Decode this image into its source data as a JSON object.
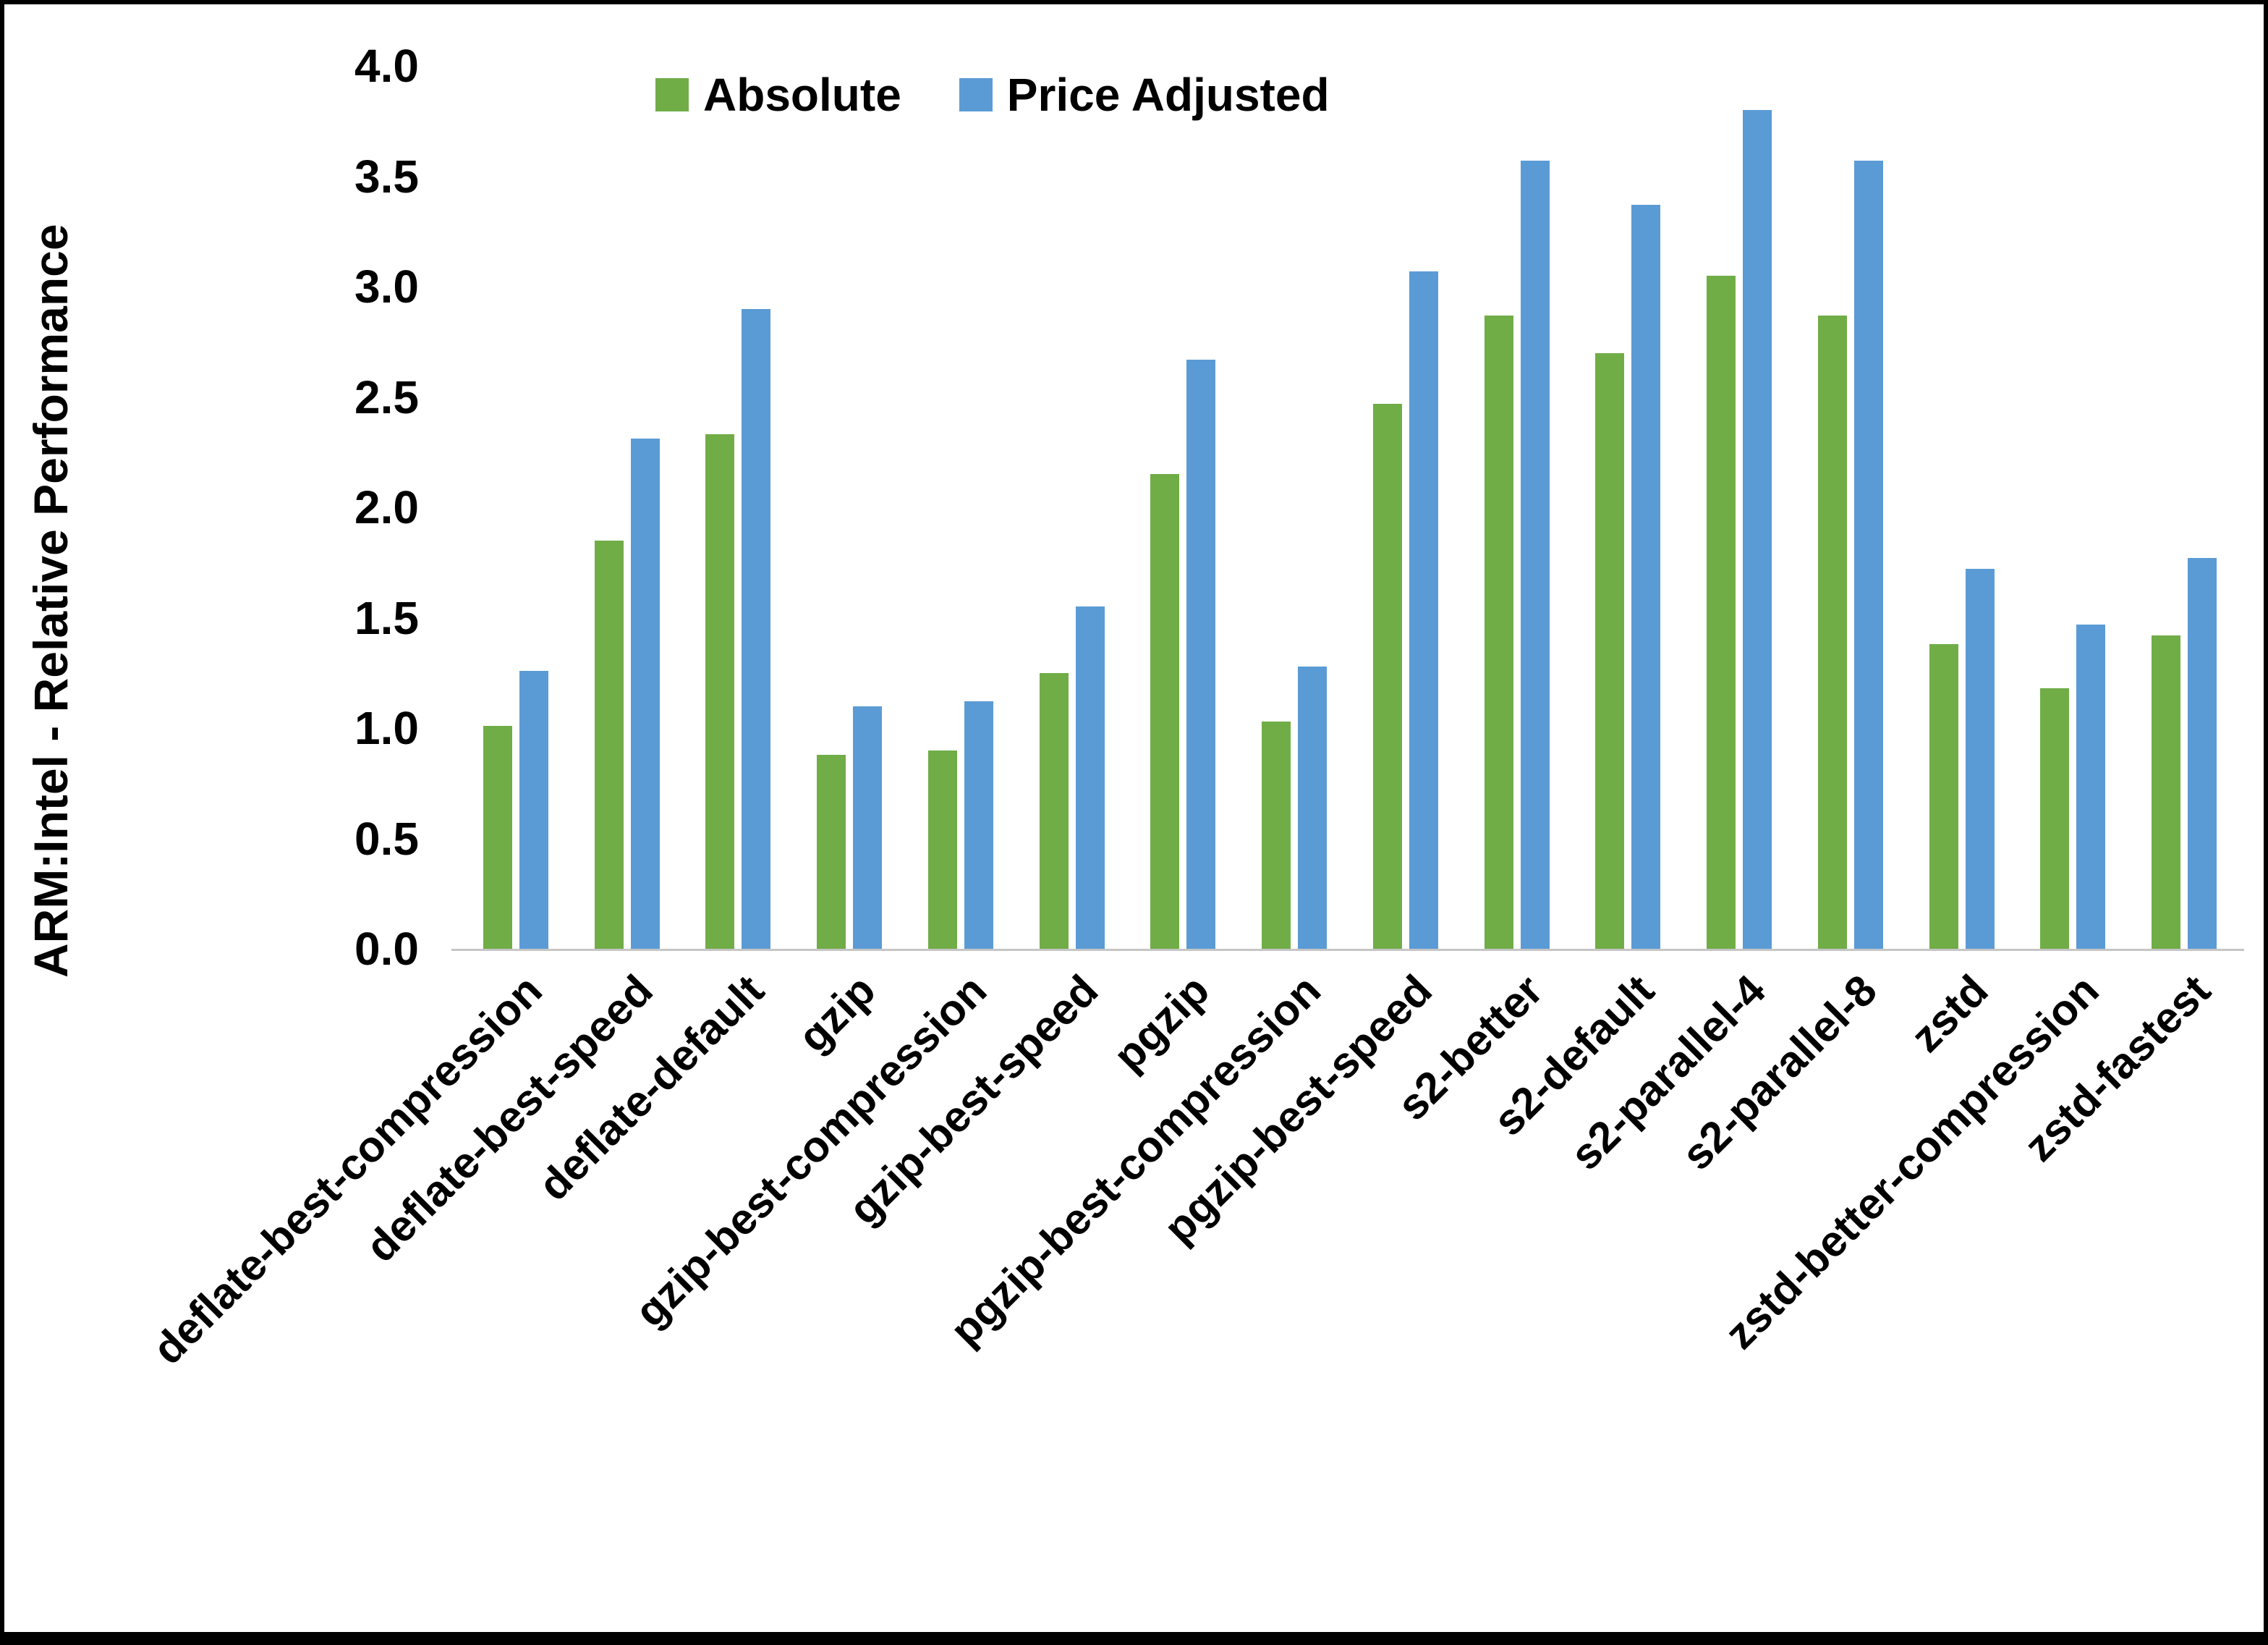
{
  "chart_data": {
    "type": "bar",
    "title": "",
    "xlabel": "",
    "ylabel": "ARM:Intel - Relative Performance",
    "ylim": [
      0.0,
      4.0
    ],
    "ytick_step": 0.5,
    "yticks": [
      "0.0",
      "0.5",
      "1.0",
      "1.5",
      "2.0",
      "2.5",
      "3.0",
      "3.5",
      "4.0"
    ],
    "grid": false,
    "legend_position": "top-center",
    "categories": [
      "deflate-best-compression",
      "deflate-best-speed",
      "deflate-default",
      "gzip",
      "gzip-best-compression",
      "gzip-best-speed",
      "pgzip",
      "pgzip-best-compression",
      "pgzip-best-speed",
      "s2-better",
      "s2-default",
      "s2-parallel-4",
      "s2-parallel-8",
      "zstd",
      "zstd-better-compression",
      "zstd-fastest"
    ],
    "series": [
      {
        "name": "Absolute",
        "color": "#70AD47",
        "values": [
          1.01,
          1.85,
          2.33,
          0.88,
          0.9,
          1.25,
          2.15,
          1.03,
          2.47,
          2.87,
          2.7,
          3.05,
          2.87,
          1.38,
          1.18,
          1.42
        ]
      },
      {
        "name": "Price Adjusted",
        "color": "#5B9BD5",
        "values": [
          1.26,
          2.31,
          2.9,
          1.1,
          1.12,
          1.55,
          2.67,
          1.28,
          3.07,
          3.57,
          3.37,
          3.8,
          3.57,
          1.72,
          1.47,
          1.77
        ]
      }
    ]
  }
}
